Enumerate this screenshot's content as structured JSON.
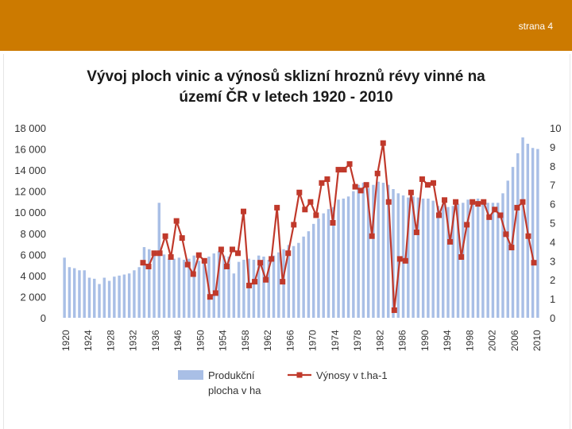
{
  "header": {
    "page_label": "strana 4",
    "bar_color": "#cc7a00"
  },
  "chart_data": {
    "type": "bar+line",
    "title_line1": "Vývoj ploch vinic a výnosů sklizní hroznů révy vinné na",
    "title_line2": "území ČR v letech 1920 - 2010",
    "x_tick_labels": [
      "1920",
      "1924",
      "1928",
      "1932",
      "1936",
      "1946",
      "1950",
      "1954",
      "1958",
      "1962",
      "1966",
      "1970",
      "1974",
      "1978",
      "1982",
      "1986",
      "1990",
      "1994",
      "1998",
      "2002",
      "2006",
      "2010"
    ],
    "y_left": {
      "min": 0,
      "max": 18000,
      "tick_labels": [
        "0",
        "2 000",
        "4 000",
        "6 000",
        "8 000",
        "10 000",
        "12 000",
        "14 000",
        "16 000",
        "18 000"
      ]
    },
    "y_right": {
      "min": 0,
      "max": 10,
      "tick_labels": [
        "0",
        "1",
        "2",
        "3",
        "4",
        "5",
        "6",
        "7",
        "8",
        "9",
        "10"
      ]
    },
    "series": [
      {
        "name_line1": "Produkční",
        "name_line2": "plocha v ha",
        "kind": "bar",
        "color": "#a9bfe6",
        "values": [
          5700,
          4800,
          4700,
          4500,
          4500,
          3800,
          3700,
          3200,
          3800,
          3500,
          3900,
          4000,
          4100,
          4200,
          4500,
          4800,
          6700,
          6500,
          6200,
          10900,
          6000,
          5600,
          5600,
          5700,
          5500,
          5600,
          5900,
          5400,
          5600,
          5800,
          6100,
          6300,
          5900,
          5800,
          4200,
          5300,
          5500,
          5600,
          5500,
          5900,
          5800,
          5500,
          5900,
          6200,
          6500,
          6900,
          6800,
          7100,
          7700,
          8200,
          8900,
          9400,
          9900,
          10300,
          10500,
          11200,
          11300,
          11500,
          12000,
          12600,
          12800,
          12300,
          12600,
          12900,
          12800,
          12600,
          12200,
          11800,
          11600,
          11400,
          11500,
          11400,
          11300,
          11300,
          11100,
          10600,
          10800,
          10500,
          10600,
          10800,
          10900,
          11200,
          11000,
          11300,
          11000,
          10900,
          10900,
          10900,
          11800,
          13000,
          14300,
          15600,
          17100,
          16500,
          16100,
          16000
        ]
      },
      {
        "name": "Výnosy v t.ha-1",
        "kind": "line",
        "color": "#c0392b",
        "values": [
          2.9,
          2.7,
          3.4,
          3.4,
          4.3,
          3.2,
          5.1,
          4.2,
          2.8,
          2.3,
          3.3,
          3.0,
          1.1,
          1.3,
          3.6,
          2.7,
          3.6,
          3.4,
          5.6,
          1.7,
          1.9,
          2.9,
          2.0,
          3.1,
          5.8,
          1.9,
          3.4,
          4.9,
          6.6,
          5.7,
          6.1,
          5.4,
          7.1,
          7.3,
          5.0,
          7.8,
          7.8,
          8.1,
          6.9,
          6.7,
          7.0,
          4.3,
          7.6,
          9.2,
          6.1,
          0.4,
          3.1,
          3.0,
          6.6,
          4.5,
          7.3,
          7.0,
          7.1,
          5.4,
          6.2,
          4.0,
          6.1,
          3.2,
          4.9,
          6.1,
          6.0,
          6.1,
          5.3,
          5.7,
          5.4,
          4.4,
          3.7,
          5.8,
          6.1,
          4.3,
          2.9
        ]
      }
    ],
    "legend_placement": "bottom",
    "grid": false
  }
}
